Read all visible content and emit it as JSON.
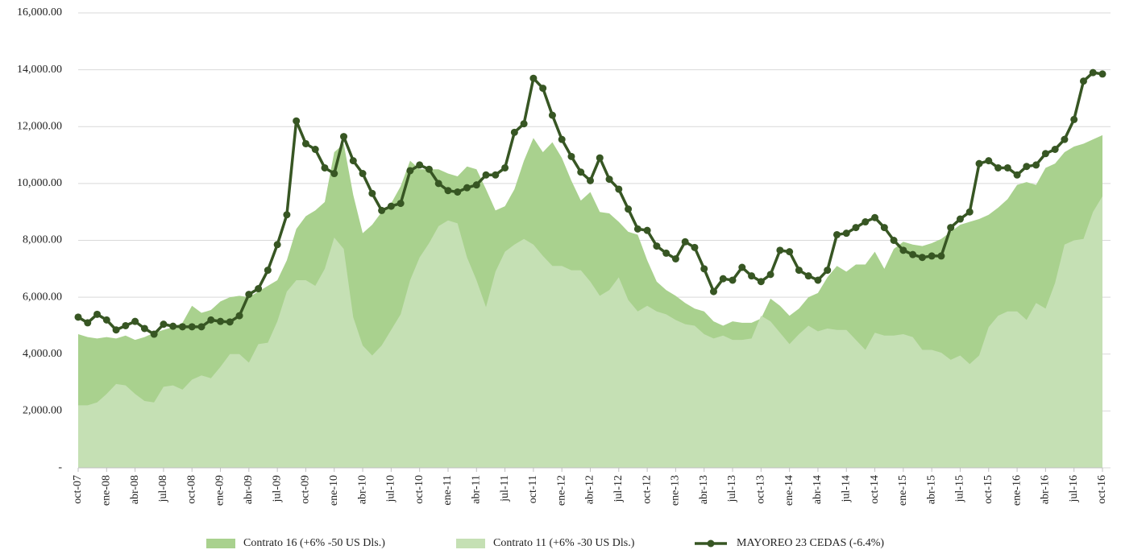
{
  "chart_data": {
    "type": "area",
    "categories": [
      "oct-07",
      null,
      null,
      "ene-08",
      null,
      null,
      "abr-08",
      null,
      null,
      "jul-08",
      null,
      null,
      "oct-08",
      null,
      null,
      "ene-09",
      null,
      null,
      "abr-09",
      null,
      null,
      "jul-09",
      null,
      null,
      "oct-09",
      null,
      null,
      "ene-10",
      null,
      null,
      "abr-10",
      null,
      null,
      "jul-10",
      null,
      null,
      "oct-10",
      null,
      null,
      "ene-11",
      null,
      null,
      "abr-11",
      null,
      null,
      "jul-11",
      null,
      null,
      "oct-11",
      null,
      null,
      "ene-12",
      null,
      null,
      "abr-12",
      null,
      null,
      "jul-12",
      null,
      null,
      "oct-12",
      null,
      null,
      "ene-13",
      null,
      null,
      "abr-13",
      null,
      null,
      "jul-13",
      null,
      null,
      "oct-13",
      null,
      null,
      "ene-14",
      null,
      null,
      "abr-14",
      null,
      null,
      "jul-14",
      null,
      null,
      "oct-14",
      null,
      null,
      "ene-15",
      null,
      null,
      "abr-15",
      null,
      null,
      "jul-15",
      null,
      null,
      "oct-15",
      null,
      null,
      "ene-16",
      null,
      null,
      "abr-16",
      null,
      null,
      "jul-16",
      null,
      null,
      "oct-16"
    ],
    "series": [
      {
        "name": "Contrato 16 (+6% -50 US Dls.)",
        "type": "area",
        "color": "#a9d18e",
        "values": [
          4700,
          4600,
          4550,
          4600,
          4550,
          4650,
          4500,
          4600,
          4750,
          4850,
          4950,
          5100,
          5700,
          5450,
          5550,
          5850,
          6000,
          6050,
          6000,
          6200,
          6400,
          6600,
          7300,
          8400,
          8850,
          9050,
          9350,
          11100,
          11400,
          9600,
          8250,
          8550,
          9000,
          9300,
          9900,
          10800,
          10500,
          10500,
          10500,
          10350,
          10250,
          10600,
          10500,
          9800,
          9050,
          9200,
          9800,
          10800,
          11600,
          11100,
          11450,
          10900,
          10100,
          9400,
          9700,
          9000,
          8950,
          8650,
          8300,
          8200,
          7300,
          6550,
          6250,
          6050,
          5800,
          5600,
          5500,
          5150,
          5000,
          5150,
          5100,
          5100,
          5250,
          5950,
          5700,
          5350,
          5600,
          6000,
          6150,
          6700,
          7100,
          6900,
          7150,
          7150,
          7600,
          7000,
          7700,
          7950,
          7850,
          7800,
          7900,
          8050,
          8300,
          8550,
          8650,
          8750,
          8900,
          9150,
          9450,
          9950,
          10050,
          9950,
          10550,
          10700,
          11100,
          11300,
          11400,
          11550,
          11700
        ]
      },
      {
        "name": "Contrato 11 (+6% -30 US Dls.)",
        "type": "area",
        "color": "#c5e0b4",
        "values": [
          2200,
          2200,
          2300,
          2600,
          2950,
          2900,
          2600,
          2350,
          2300,
          2850,
          2900,
          2750,
          3100,
          3250,
          3150,
          3550,
          4000,
          4000,
          3700,
          4350,
          4400,
          5150,
          6200,
          6600,
          6600,
          6400,
          7000,
          8100,
          7700,
          5300,
          4300,
          3950,
          4300,
          4850,
          5400,
          6600,
          7400,
          7900,
          8500,
          8700,
          8600,
          7400,
          6600,
          5650,
          6900,
          7600,
          7850,
          8050,
          7850,
          7450,
          7100,
          7100,
          6950,
          6950,
          6550,
          6050,
          6250,
          6700,
          5900,
          5500,
          5700,
          5500,
          5400,
          5200,
          5050,
          5000,
          4700,
          4550,
          4650,
          4500,
          4500,
          4550,
          5350,
          5150,
          4750,
          4350,
          4700,
          5000,
          4800,
          4900,
          4850,
          4850,
          4500,
          4150,
          4750,
          4650,
          4650,
          4700,
          4600,
          4150,
          4150,
          4050,
          3800,
          3950,
          3650,
          3950,
          4950,
          5350,
          5500,
          5500,
          5200,
          5800,
          5600,
          6500,
          7850,
          8000,
          8050,
          9000,
          9550
        ]
      },
      {
        "name": "MAYOREO 23 CEDAS (-6.4%)",
        "type": "line",
        "color": "#375623",
        "values": [
          5300,
          5100,
          5400,
          5200,
          4850,
          5000,
          5150,
          4900,
          4700,
          5050,
          4980,
          4960,
          4960,
          4960,
          5200,
          5150,
          5130,
          5350,
          6100,
          6300,
          6950,
          7850,
          8900,
          12200,
          11400,
          11200,
          10550,
          10350,
          11650,
          10800,
          10350,
          9650,
          9050,
          9200,
          9300,
          10450,
          10650,
          10500,
          10000,
          9750,
          9700,
          9850,
          9950,
          10300,
          10300,
          10550,
          11800,
          12100,
          13700,
          13350,
          12400,
          11550,
          10950,
          10400,
          10100,
          10900,
          10150,
          9800,
          9100,
          8400,
          8350,
          7800,
          7550,
          7350,
          7950,
          7750,
          7000,
          6200,
          6650,
          6600,
          7050,
          6750,
          6550,
          6800,
          7650,
          7600,
          6950,
          6750,
          6600,
          6950,
          8200,
          8250,
          8450,
          8650,
          8800,
          8450,
          8000,
          7650,
          7500,
          7400,
          7450,
          7450,
          8450,
          8750,
          9000,
          10700,
          10800,
          10550,
          10550,
          10300,
          10600,
          10650,
          11050,
          11200,
          11550,
          12250,
          13600,
          13900,
          13850
        ]
      }
    ],
    "ylim": [
      0,
      16000
    ],
    "yticks": [
      {
        "value": 0,
        "label": "-"
      },
      {
        "value": 2000,
        "label": "2,000.00"
      },
      {
        "value": 4000,
        "label": "4,000.00"
      },
      {
        "value": 6000,
        "label": "6,000.00"
      },
      {
        "value": 8000,
        "label": "8,000.00"
      },
      {
        "value": 10000,
        "label": "10,000.00"
      },
      {
        "value": 12000,
        "label": "12,000.00"
      },
      {
        "value": 14000,
        "label": "14,000.00"
      },
      {
        "value": 16000,
        "label": "16,000.00"
      }
    ],
    "grid": true,
    "legend": "bottom"
  }
}
